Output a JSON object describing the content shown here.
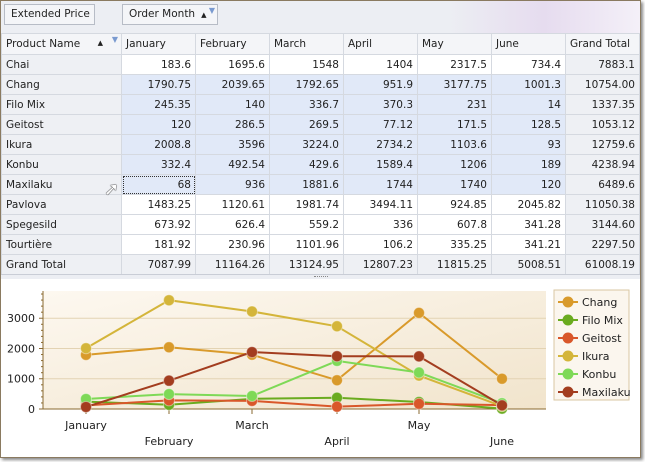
{
  "toolbar": {
    "data_field": "Extended Price",
    "column_field": "Order Month"
  },
  "row_field": "Product Name",
  "columns": [
    "January",
    "February",
    "March",
    "April",
    "May",
    "June",
    "Grand Total"
  ],
  "rows": [
    {
      "name": "Chai",
      "values": [
        "183.6",
        "1695.6",
        "1548",
        "1404",
        "2317.5",
        "734.4",
        "7883.1"
      ]
    },
    {
      "name": "Chang",
      "values": [
        "1790.75",
        "2039.65",
        "1792.65",
        "951.9",
        "3177.75",
        "1001.3",
        "10754.00"
      ]
    },
    {
      "name": "Filo Mix",
      "values": [
        "245.35",
        "140",
        "336.7",
        "370.3",
        "231",
        "14",
        "1337.35"
      ]
    },
    {
      "name": "Geitost",
      "values": [
        "120",
        "286.5",
        "269.5",
        "77.12",
        "171.5",
        "128.5",
        "1053.12"
      ]
    },
    {
      "name": "Ikura",
      "values": [
        "2008.8",
        "3596",
        "3224.0",
        "2734.2",
        "1103.6",
        "93",
        "12759.6"
      ]
    },
    {
      "name": "Konbu",
      "values": [
        "332.4",
        "492.54",
        "429.6",
        "1589.4",
        "1206",
        "189",
        "4238.94"
      ]
    },
    {
      "name": "Maxilaku",
      "values": [
        "68",
        "936",
        "1881.6",
        "1744",
        "1740",
        "120",
        "6489.6"
      ]
    },
    {
      "name": "Pavlova",
      "values": [
        "1483.25",
        "1120.61",
        "1981.74",
        "3494.11",
        "924.85",
        "2045.82",
        "11050.38"
      ]
    },
    {
      "name": "Spegesild",
      "values": [
        "673.92",
        "626.4",
        "559.2",
        "336",
        "607.8",
        "341.28",
        "3144.60"
      ]
    },
    {
      "name": "Tourtière",
      "values": [
        "181.92",
        "230.96",
        "1101.96",
        "106.2",
        "335.25",
        "341.21",
        "2297.50"
      ]
    }
  ],
  "grand_total": {
    "name": "Grand Total",
    "values": [
      "7087.99",
      "11164.26",
      "13124.95",
      "12807.23",
      "11815.25",
      "5008.51",
      "61008.19"
    ]
  },
  "chart_data": {
    "type": "line",
    "categories": [
      "January",
      "February",
      "March",
      "April",
      "May",
      "June"
    ],
    "ylim": [
      0,
      3900
    ],
    "yticks": [
      "0",
      "1000",
      "2000",
      "3000"
    ],
    "legend": "right",
    "series": [
      {
        "name": "Chang",
        "color": "#d99a2b",
        "values": [
          1790.75,
          2039.65,
          1792.65,
          951.9,
          3177.75,
          1001.3
        ]
      },
      {
        "name": "Filo Mix",
        "color": "#6aab1f",
        "values": [
          245.35,
          140,
          336.7,
          370.3,
          231,
          14
        ]
      },
      {
        "name": "Geitost",
        "color": "#d9572a",
        "values": [
          120,
          286.5,
          269.5,
          77.12,
          171.5,
          128.5
        ]
      },
      {
        "name": "Ikura",
        "color": "#d4b53a",
        "values": [
          2008.8,
          3596,
          3224.0,
          2734.2,
          1103.6,
          93
        ]
      },
      {
        "name": "Konbu",
        "color": "#7ed957",
        "values": [
          332.4,
          492.54,
          429.6,
          1589.4,
          1206,
          189
        ]
      },
      {
        "name": "Maxilaku",
        "color": "#a33d1f",
        "values": [
          68,
          936,
          1881.6,
          1744,
          1740,
          120
        ]
      }
    ]
  }
}
